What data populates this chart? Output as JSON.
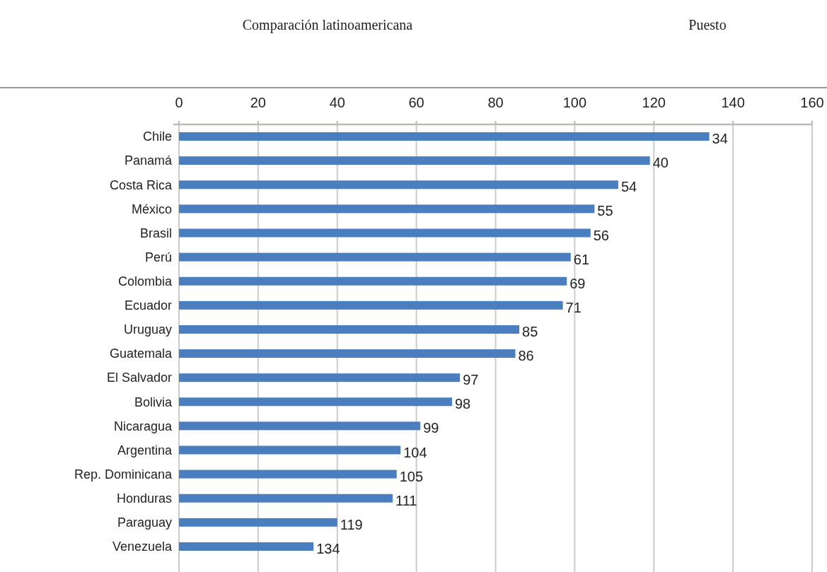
{
  "chart_data": {
    "type": "bar",
    "orientation": "horizontal",
    "title": "Comparación latinoamericana",
    "subtitle": "Puesto",
    "categories": [
      "Chile",
      "Panamá",
      "Costa Rica",
      "México",
      "Brasil",
      "Perú",
      "Colombia",
      "Ecuador",
      "Uruguay",
      "Guatemala",
      "El Salvador",
      "Bolivia",
      "Nicaragua",
      "Argentina",
      "Rep. Dominicana",
      "Honduras",
      "Paraguay",
      "Venezuela"
    ],
    "values": [
      134,
      119,
      111,
      105,
      104,
      99,
      98,
      97,
      86,
      85,
      71,
      69,
      61,
      56,
      55,
      54,
      40,
      34
    ],
    "annotations": [
      {
        "text": "34",
        "x": 134,
        "y": "Chile"
      },
      {
        "text": "40",
        "x": 119,
        "y": "Panamá"
      },
      {
        "text": "54",
        "x": 111,
        "y": "Costa Rica"
      },
      {
        "text": "55",
        "x": 105,
        "y": "México"
      },
      {
        "text": "56",
        "x": 104,
        "y": "Brasil"
      },
      {
        "text": "61",
        "x": 99,
        "y": "Perú"
      },
      {
        "text": "69",
        "x": 98,
        "y": "Colombia"
      },
      {
        "text": "71",
        "x": 97,
        "y": "Ecuador"
      },
      {
        "text": "85",
        "x": 86,
        "y": "Uruguay"
      },
      {
        "text": "86",
        "x": 85,
        "y": "Guatemala"
      },
      {
        "text": "97",
        "x": 71,
        "y": "El Salvador"
      },
      {
        "text": "98",
        "x": 69,
        "y": "Bolivia"
      },
      {
        "text": "99",
        "x": 61,
        "y": "Nicaragua"
      },
      {
        "text": "104",
        "x": 56,
        "y": "Argentina"
      },
      {
        "text": "105",
        "x": 55,
        "y": "Rep. Dominicana"
      },
      {
        "text": "111",
        "x": 54,
        "y": "Honduras"
      },
      {
        "text": "119",
        "x": 40,
        "y": "Paraguay"
      },
      {
        "text": "134",
        "x": 34,
        "y": "Venezuela"
      }
    ],
    "color": "#4a7ebf",
    "xlim": [
      0,
      160
    ],
    "xticks": [
      0,
      20,
      40,
      60,
      80,
      100,
      120,
      140,
      160
    ],
    "grid": "x"
  }
}
